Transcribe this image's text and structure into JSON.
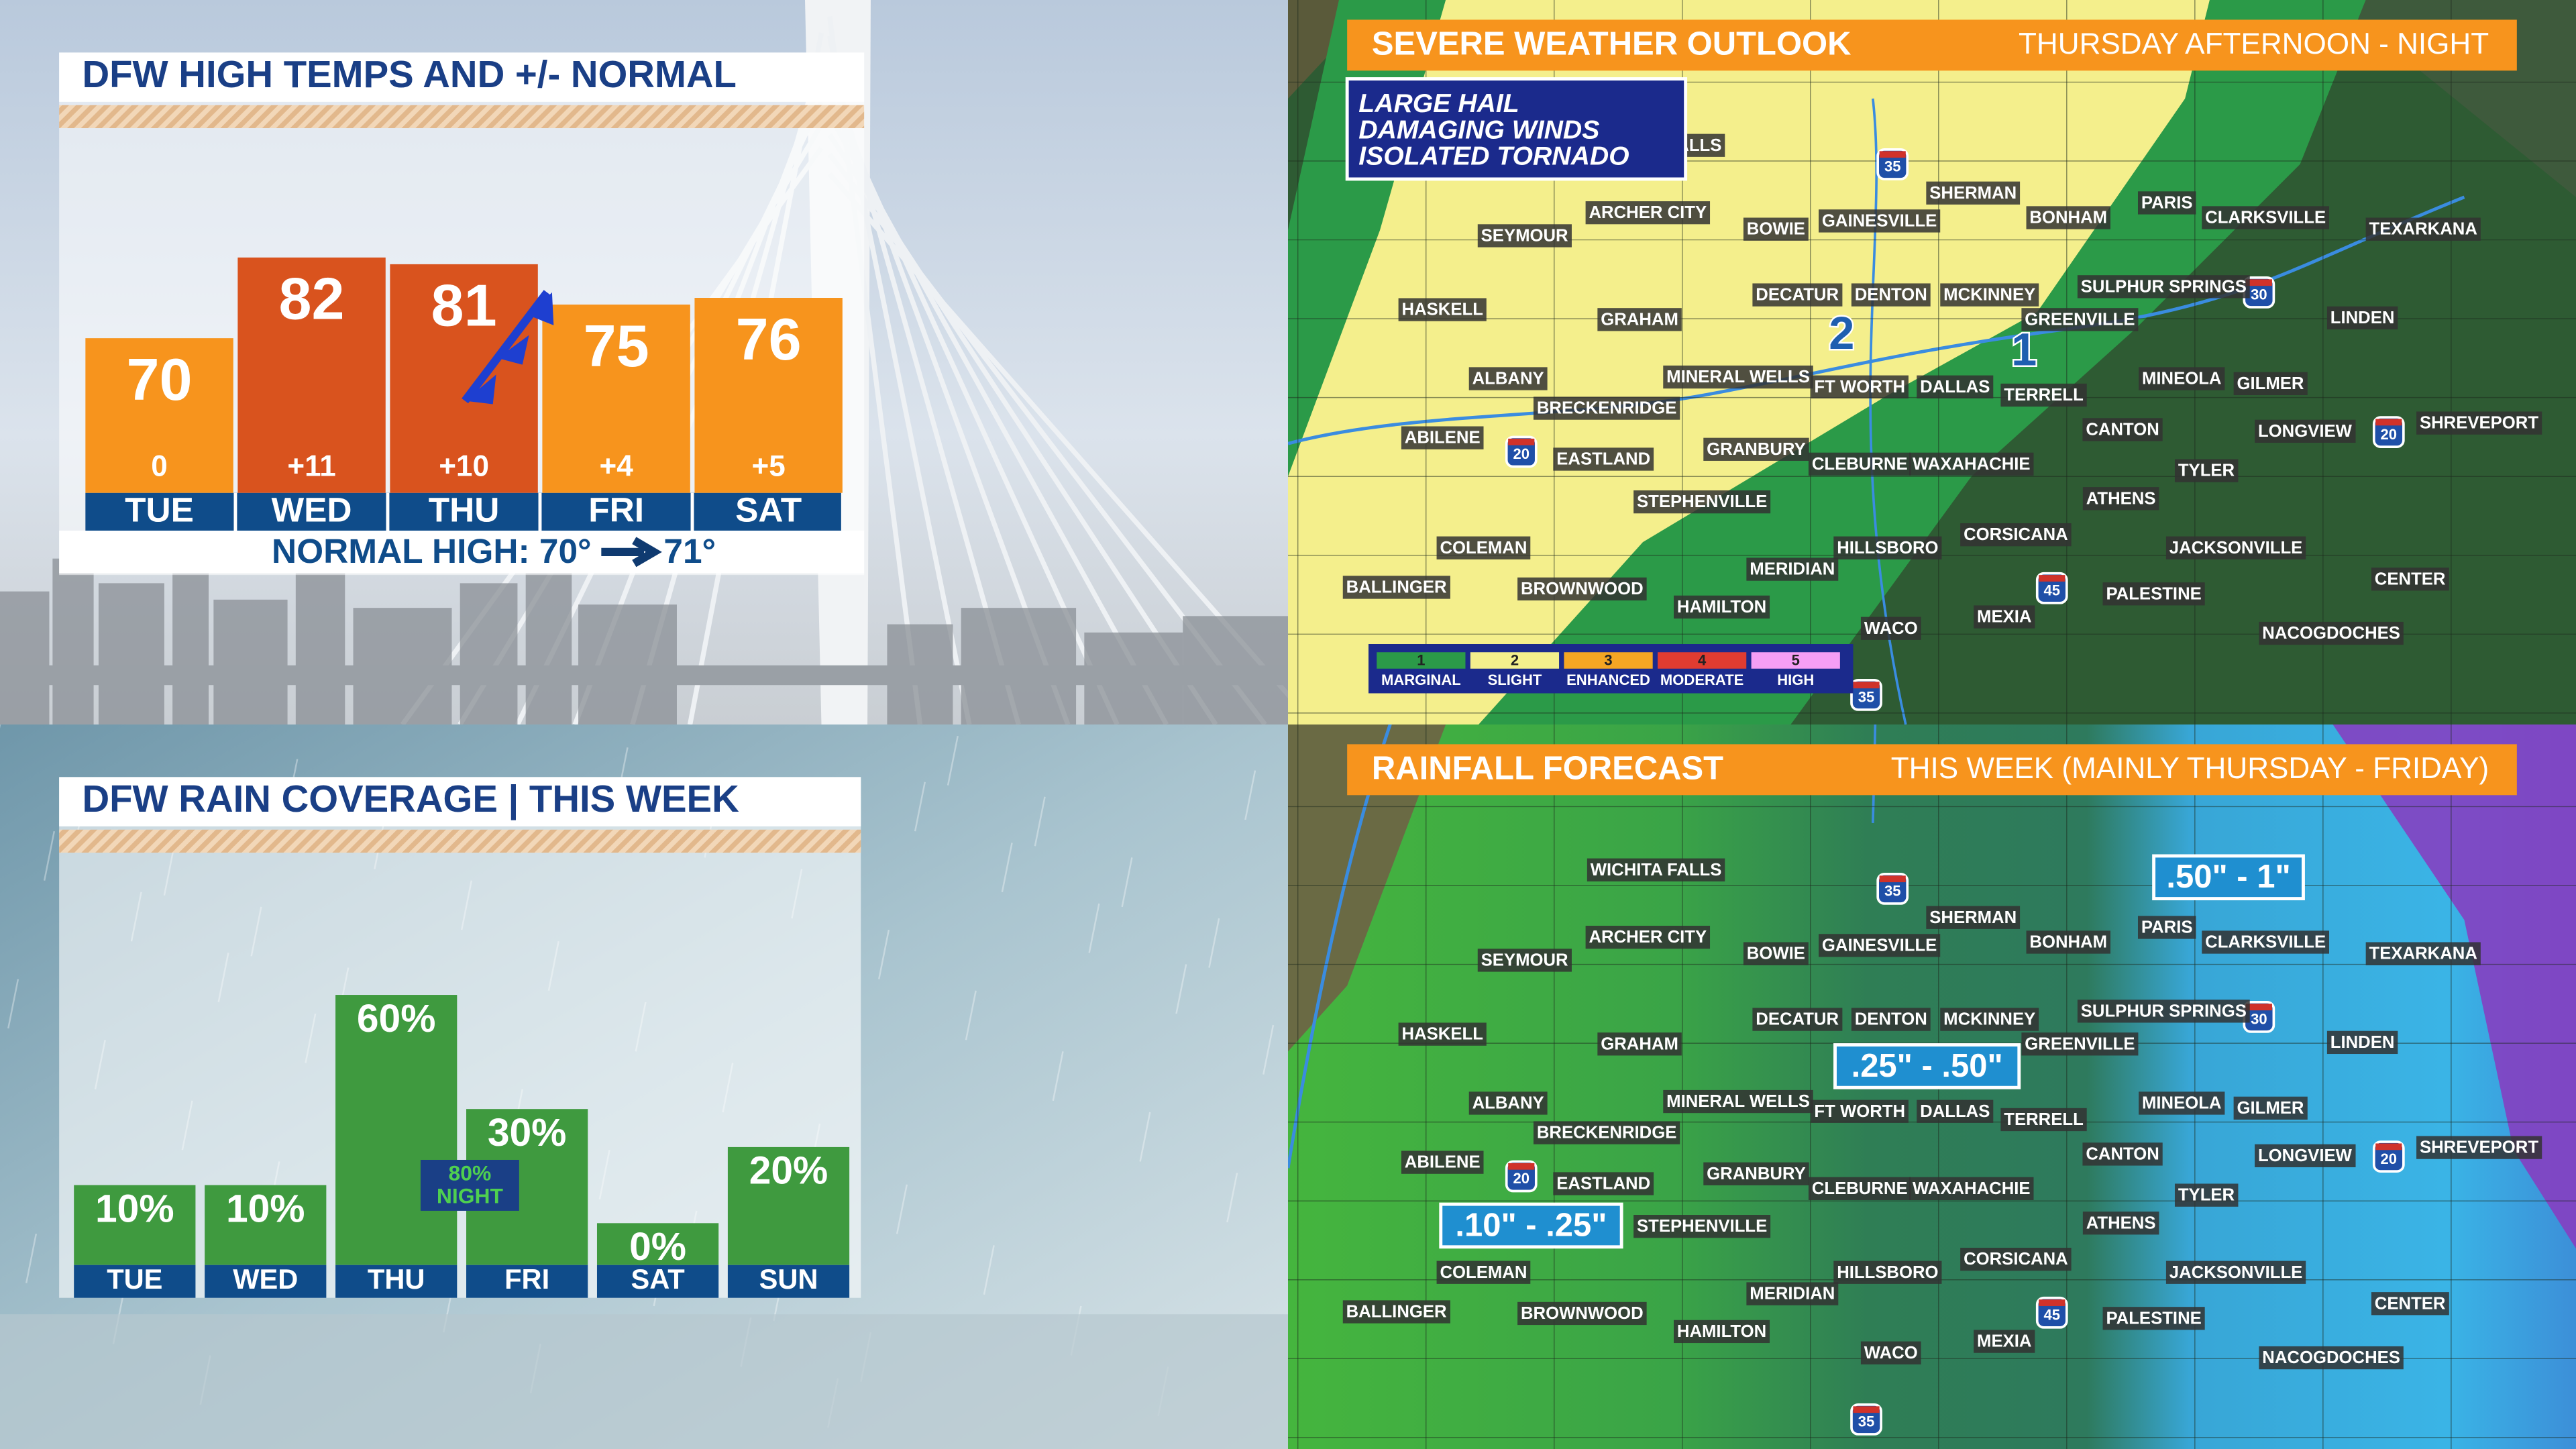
{
  "chart_data": [
    {
      "type": "bar",
      "title": "DFW HIGH TEMPS AND +/- NORMAL",
      "categories": [
        "TUE",
        "WED",
        "THU",
        "FRI",
        "SAT"
      ],
      "values": [
        70,
        82,
        81,
        75,
        76
      ],
      "colors": [
        "#f7941d",
        "#d9531e",
        "#d9531e",
        "#f7941d",
        "#f7941d"
      ],
      "departures": [
        "0",
        "+11",
        "+10",
        "+4",
        "+5"
      ],
      "ylim": [
        47,
        90
      ],
      "footer": "NORMAL HIGH: 70°",
      "footer_next": "71°"
    },
    {
      "type": "bar",
      "title": "DFW RAIN COVERAGE | THIS WEEK",
      "categories": [
        "TUE",
        "WED",
        "THU",
        "FRI",
        "SAT",
        "SUN"
      ],
      "values": [
        10,
        10,
        60,
        30,
        0,
        20
      ],
      "value_labels": [
        "10%",
        "10%",
        "60%",
        "30%",
        "0%",
        "20%"
      ],
      "color": "#3f9a3f",
      "ylim": [
        -11,
        65
      ],
      "annotation": [
        "80%",
        "NIGHT"
      ]
    }
  ],
  "maps": {
    "cities": [
      "WICHITA FALLS",
      "ARCHER CITY",
      "SEYMOUR",
      "BOWIE",
      "GAINESVILLE",
      "SHERMAN",
      "BONHAM",
      "PARIS",
      "CLARKSVILLE",
      "TEXARKANA",
      "HASKELL",
      "GRAHAM",
      "DECATUR",
      "DENTON",
      "MCKINNEY",
      "SULPHUR SPRINGS",
      "GREENVILLE",
      "LINDEN",
      "ALBANY",
      "MINERAL WELLS",
      "FT WORTH",
      "DALLAS",
      "TERRELL",
      "MINEOLA",
      "GILMER",
      "BRECKENRIDGE",
      "ABILENE",
      "EASTLAND",
      "GRANBURY",
      "CANTON",
      "LONGVIEW",
      "SHREVEPORT",
      "CLEBURNE",
      "WAXAHACHIE",
      "TYLER",
      "STEPHENVILLE",
      "ATHENS",
      "COLEMAN",
      "HILLSBORO",
      "CORSICANA",
      "JACKSONVILLE",
      "MERIDIAN",
      "BALLINGER",
      "BROWNWOOD",
      "PALESTINE",
      "CENTER",
      "HAMILTON",
      "MEXIA",
      "WACO",
      "NACOGDOCHES"
    ],
    "highways": [
      "35",
      "30",
      "20",
      "20",
      "45",
      "35"
    ],
    "severe": {
      "title": "SEVERE WEATHER OUTLOOK",
      "subtitle": "THURSDAY AFTERNOON - NIGHT",
      "hazards": [
        "LARGE HAIL",
        "DAMAGING WINDS",
        "ISOLATED TORNADO"
      ],
      "risk_labels": [
        2,
        1
      ],
      "legend": [
        {
          "level": 1,
          "label": "MARGINAL",
          "color": "#2b9a48"
        },
        {
          "level": 2,
          "label": "SLIGHT",
          "color": "#f4ef8c"
        },
        {
          "level": 3,
          "label": "ENHANCED",
          "color": "#f5a623"
        },
        {
          "level": 4,
          "label": "MODERATE",
          "color": "#e03c31"
        },
        {
          "level": 5,
          "label": "HIGH",
          "color": "#f59ef5"
        }
      ]
    },
    "rainfall": {
      "title": "RAINFALL FORECAST",
      "subtitle": "THIS WEEK (MAINLY THURSDAY - FRIDAY)",
      "ranges": [
        ".50\" - 1\"",
        ".25\" - .50\"",
        ".10\" - .25\""
      ]
    }
  }
}
